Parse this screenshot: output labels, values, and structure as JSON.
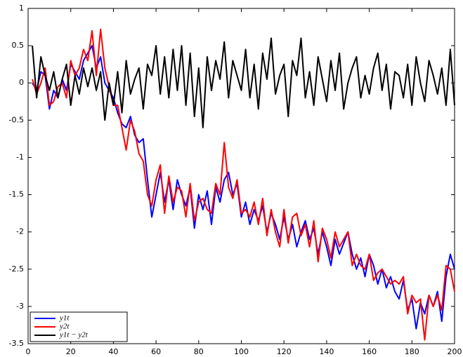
{
  "chart_data": {
    "type": "line",
    "x": [
      2,
      4,
      6,
      8,
      10,
      12,
      14,
      16,
      18,
      20,
      22,
      24,
      26,
      28,
      30,
      32,
      34,
      36,
      38,
      40,
      42,
      44,
      46,
      48,
      50,
      52,
      54,
      56,
      58,
      60,
      62,
      64,
      66,
      68,
      70,
      72,
      74,
      76,
      78,
      80,
      82,
      84,
      86,
      88,
      90,
      92,
      94,
      96,
      98,
      100,
      102,
      104,
      106,
      108,
      110,
      112,
      114,
      116,
      118,
      120,
      122,
      124,
      126,
      128,
      130,
      132,
      134,
      136,
      138,
      140,
      142,
      144,
      146,
      148,
      150,
      152,
      154,
      156,
      158,
      160,
      162,
      164,
      166,
      168,
      170,
      172,
      174,
      176,
      178,
      180,
      182,
      184,
      186,
      188,
      190,
      192,
      194,
      196,
      198,
      200
    ],
    "series": [
      {
        "name": "y1t",
        "color": "#0000ff",
        "values": [
          0.0,
          -0.1,
          0.15,
          0.1,
          -0.35,
          -0.1,
          -0.2,
          0.05,
          -0.1,
          0.25,
          0.15,
          0.05,
          0.3,
          0.4,
          0.5,
          0.2,
          0.35,
          0.0,
          -0.1,
          -0.2,
          -0.4,
          -0.55,
          -0.6,
          -0.45,
          -0.7,
          -0.8,
          -0.75,
          -1.3,
          -1.8,
          -1.5,
          -1.2,
          -1.6,
          -1.3,
          -1.7,
          -1.3,
          -1.5,
          -1.65,
          -1.4,
          -1.95,
          -1.5,
          -1.7,
          -1.45,
          -1.9,
          -1.4,
          -1.6,
          -1.3,
          -1.2,
          -1.5,
          -1.35,
          -1.8,
          -1.6,
          -1.9,
          -1.7,
          -1.85,
          -1.65,
          -2.0,
          -1.75,
          -1.9,
          -2.1,
          -1.8,
          -2.1,
          -1.9,
          -2.2,
          -2.0,
          -1.85,
          -2.1,
          -1.95,
          -2.3,
          -2.0,
          -2.2,
          -2.45,
          -2.1,
          -2.3,
          -2.15,
          -2.0,
          -2.3,
          -2.5,
          -2.35,
          -2.6,
          -2.3,
          -2.45,
          -2.7,
          -2.5,
          -2.75,
          -2.6,
          -2.8,
          -2.9,
          -2.65,
          -3.05,
          -2.9,
          -3.3,
          -2.95,
          -3.1,
          -2.85,
          -3.0,
          -2.8,
          -3.2,
          -2.6,
          -2.3,
          -2.5
        ]
      },
      {
        "name": "y2t",
        "color": "#ff0000",
        "values": [
          0.05,
          -0.15,
          0.0,
          0.2,
          -0.3,
          -0.25,
          -0.05,
          0.0,
          -0.2,
          0.3,
          0.1,
          0.2,
          0.45,
          0.3,
          0.7,
          0.1,
          0.72,
          0.2,
          -0.05,
          -0.3,
          -0.3,
          -0.6,
          -0.9,
          -0.5,
          -0.65,
          -0.95,
          -1.05,
          -1.5,
          -1.65,
          -1.3,
          -1.1,
          -1.75,
          -1.25,
          -1.6,
          -1.4,
          -1.45,
          -1.8,
          -1.35,
          -1.85,
          -1.6,
          -1.55,
          -1.7,
          -1.75,
          -1.35,
          -1.5,
          -0.8,
          -1.4,
          -1.55,
          -1.3,
          -1.75,
          -1.7,
          -1.8,
          -1.6,
          -1.9,
          -1.55,
          -2.05,
          -1.7,
          -2.0,
          -2.2,
          -1.7,
          -2.15,
          -1.8,
          -1.75,
          -2.05,
          -1.9,
          -2.2,
          -1.85,
          -2.4,
          -1.95,
          -2.1,
          -2.35,
          -2.0,
          -2.2,
          -2.1,
          -2.0,
          -2.45,
          -2.3,
          -2.45,
          -2.5,
          -2.3,
          -2.65,
          -2.55,
          -2.5,
          -2.6,
          -2.7,
          -2.65,
          -2.7,
          -2.6,
          -3.1,
          -2.85,
          -2.95,
          -2.9,
          -3.45,
          -2.85,
          -3.0,
          -2.85,
          -3.05,
          -2.45,
          -2.5,
          -2.8
        ]
      },
      {
        "name": "y1t − y2t",
        "color": "#000000",
        "values": [
          0.5,
          -0.2,
          0.35,
          0.1,
          -0.1,
          0.15,
          -0.2,
          0.05,
          0.25,
          -0.3,
          0.1,
          -0.15,
          0.2,
          -0.05,
          0.2,
          -0.1,
          0.15,
          -0.5,
          0.0,
          -0.3,
          0.15,
          -0.4,
          0.3,
          -0.15,
          0.05,
          0.2,
          -0.35,
          0.25,
          0.1,
          0.5,
          -0.15,
          0.35,
          -0.2,
          0.45,
          -0.1,
          0.5,
          -0.3,
          0.4,
          -0.45,
          0.2,
          -0.6,
          0.35,
          -0.1,
          0.3,
          0.05,
          0.55,
          -0.2,
          0.3,
          0.1,
          -0.1,
          0.45,
          -0.2,
          0.25,
          -0.35,
          0.4,
          0.05,
          0.6,
          -0.15,
          0.1,
          0.25,
          -0.45,
          0.3,
          0.1,
          0.6,
          -0.2,
          0.15,
          -0.3,
          0.35,
          0.05,
          -0.25,
          0.3,
          -0.1,
          0.4,
          -0.35,
          0.0,
          0.2,
          0.35,
          -0.2,
          0.1,
          -0.15,
          0.2,
          0.4,
          -0.1,
          0.25,
          -0.35,
          0.15,
          0.1,
          -0.2,
          0.25,
          -0.3,
          0.35,
          0.0,
          -0.25,
          0.3,
          0.1,
          -0.15,
          0.2,
          -0.3,
          0.45,
          -0.3
        ]
      }
    ],
    "xlim": [
      0,
      200
    ],
    "xticks": [
      0,
      20,
      40,
      60,
      80,
      100,
      120,
      140,
      160,
      180,
      200
    ],
    "ylim": [
      -3.5,
      1
    ],
    "yticks": [
      -3.5,
      -3,
      -2.5,
      -2,
      -1.5,
      -1,
      -0.5,
      0,
      0.5,
      1
    ],
    "grid": false,
    "legend": "lower left"
  }
}
